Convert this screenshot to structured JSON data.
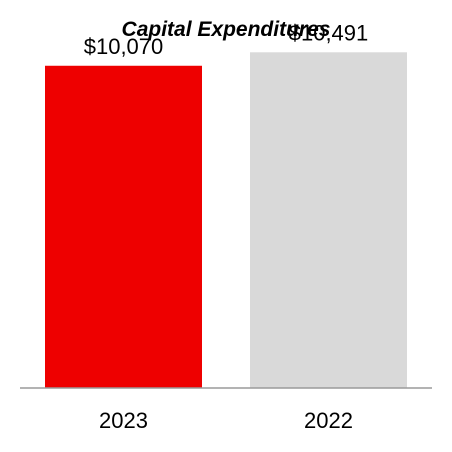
{
  "chart_data": {
    "type": "bar",
    "title": "Capital Expenditures",
    "xlabel": "",
    "ylabel": "",
    "categories": [
      "2023",
      "2022"
    ],
    "values": [
      10070,
      10491
    ],
    "data_labels": [
      "$10,070",
      "$10,491"
    ],
    "colors": [
      "#ee0000",
      "#d9d9d9"
    ],
    "ylim": [
      0,
      11500
    ],
    "grid": false,
    "legend": "none"
  }
}
